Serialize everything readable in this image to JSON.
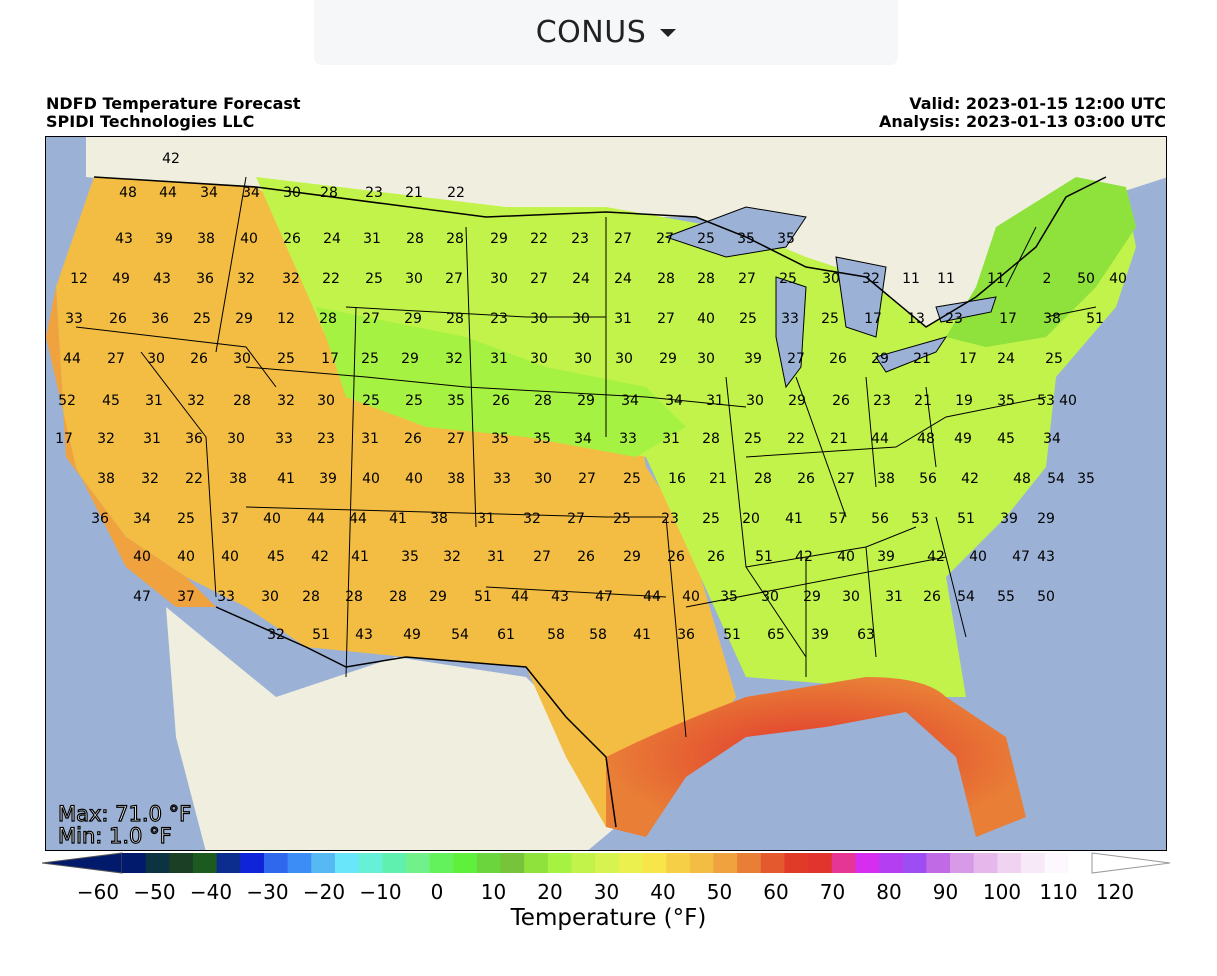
{
  "region_selector": {
    "label": "CONUS"
  },
  "header": {
    "title": "NDFD Temperature Forecast",
    "credit": "SPIDI Technologies LLC",
    "valid": "Valid: 2023-01-15 12:00 UTC",
    "analysis": "Analysis: 2023-01-13 03:00 UTC"
  },
  "stats": {
    "max": "Max: 71.0 °F",
    "min": "Min: 1.0 °F"
  },
  "colorbar": {
    "title": "Temperature (°F)",
    "ticks": [
      "−60",
      "−50",
      "−40",
      "−30",
      "−20",
      "−10",
      "0",
      "10",
      "20",
      "30",
      "40",
      "50",
      "60",
      "70",
      "80",
      "90",
      "100",
      "110",
      "120"
    ],
    "colors": [
      "#021a6b",
      "#0b3342",
      "#1a3f25",
      "#1c5a1f",
      "#0c2c8e",
      "#0f24d8",
      "#2f68ec",
      "#3c8df5",
      "#57b9f4",
      "#6ae6fa",
      "#66f0d7",
      "#5ff0b0",
      "#72f18a",
      "#64f25c",
      "#5ef03d",
      "#6ad53c",
      "#77c33a",
      "#8ee23b",
      "#a6f242",
      "#c2f34a",
      "#d7f34f",
      "#ecf04f",
      "#f7e54a",
      "#f6cf46",
      "#f3bd44",
      "#efa23e",
      "#e97e36",
      "#e4592e",
      "#e03a28",
      "#e0342d",
      "#e53595",
      "#d52ef0",
      "#b43ef1",
      "#9d4df1",
      "#c06be5",
      "#d79ae6",
      "#e5b7ea",
      "#efd3f1",
      "#f7e9f8",
      "#fdf8fd",
      "#ffffff"
    ],
    "colors_labels_note": ""
  },
  "map": {
    "colors": {
      "ocean": "#9bb2d6",
      "land": "#efeedf",
      "lake": "#9bb2d6",
      "border": "#000000"
    },
    "station_temps": [
      "42",
      "48",
      "44",
      "34",
      "34",
      "30",
      "28",
      "23",
      "21",
      "22",
      "43",
      "39",
      "38",
      "40",
      "26",
      "24",
      "31",
      "28",
      "28",
      "29",
      "22",
      "23",
      "27",
      "27",
      "25",
      "35",
      "35",
      "12",
      "49",
      "43",
      "36",
      "32",
      "32",
      "22",
      "25",
      "30",
      "27",
      "30",
      "27",
      "24",
      "24",
      "28",
      "28",
      "27",
      "25",
      "30",
      "32",
      "11",
      "11",
      "11",
      "2",
      "50",
      "40",
      "33",
      "26",
      "36",
      "25",
      "29",
      "12",
      "28",
      "27",
      "29",
      "28",
      "23",
      "30",
      "30",
      "31",
      "27",
      "40",
      "25",
      "33",
      "25",
      "17",
      "13",
      "23",
      "17",
      "38",
      "51",
      "44",
      "27",
      "30",
      "26",
      "30",
      "25",
      "17",
      "25",
      "29",
      "32",
      "31",
      "30",
      "30",
      "30",
      "29",
      "30",
      "39",
      "27",
      "26",
      "29",
      "21",
      "17",
      "24",
      "25",
      "52",
      "45",
      "31",
      "32",
      "28",
      "32",
      "30",
      "25",
      "25",
      "35",
      "26",
      "28",
      "29",
      "34",
      "34",
      "31",
      "30",
      "29",
      "26",
      "23",
      "21",
      "19",
      "35",
      "53",
      "40",
      "17",
      "32",
      "31",
      "36",
      "30",
      "33",
      "23",
      "31",
      "26",
      "27",
      "35",
      "35",
      "34",
      "33",
      "31",
      "28",
      "25",
      "22",
      "21",
      "44",
      "48",
      "49",
      "45",
      "34",
      "38",
      "32",
      "22",
      "38",
      "41",
      "39",
      "40",
      "40",
      "38",
      "33",
      "30",
      "27",
      "25",
      "16",
      "21",
      "28",
      "26",
      "27",
      "38",
      "56",
      "42",
      "48",
      "54",
      "35",
      "36",
      "34",
      "25",
      "37",
      "40",
      "44",
      "44",
      "41",
      "38",
      "31",
      "32",
      "27",
      "25",
      "23",
      "25",
      "20",
      "41",
      "57",
      "56",
      "53",
      "51",
      "39",
      "29",
      "40",
      "40",
      "40",
      "45",
      "42",
      "41",
      "35",
      "32",
      "31",
      "27",
      "26",
      "29",
      "26",
      "26",
      "51",
      "42",
      "40",
      "39",
      "42",
      "40",
      "47",
      "43",
      "47",
      "37",
      "33",
      "30",
      "28",
      "28",
      "28",
      "29",
      "51",
      "44",
      "43",
      "47",
      "44",
      "40",
      "35",
      "30",
      "29",
      "30",
      "31",
      "26",
      "54",
      "55",
      "50",
      "32",
      "51",
      "43",
      "49",
      "54",
      "61",
      "58",
      "58",
      "41",
      "36",
      "51",
      "65",
      "39",
      "63"
    ]
  }
}
